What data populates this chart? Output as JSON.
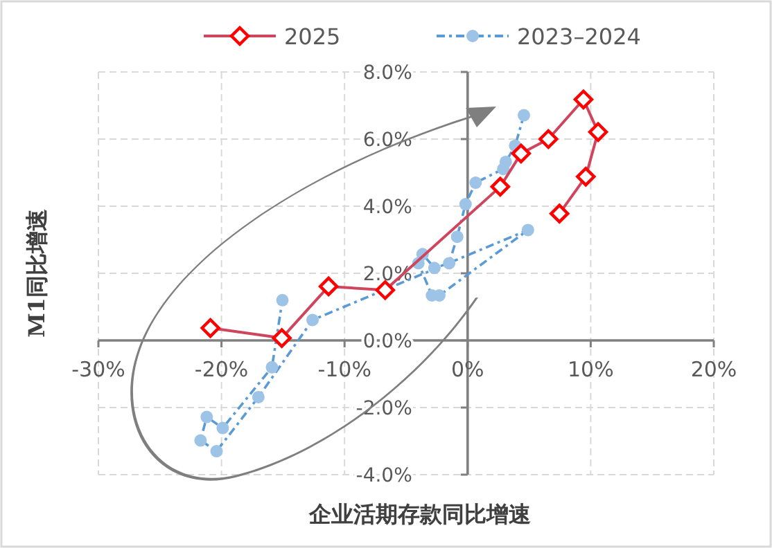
{
  "chart_data": {
    "type": "line",
    "xlabel": "企业活期存款同比增速",
    "ylabel": "M1同比增速",
    "xlim": [
      -30,
      20
    ],
    "ylim": [
      -4,
      8
    ],
    "xticks": [
      {
        "value": -30,
        "label": "-30%"
      },
      {
        "value": -20,
        "label": "-20%"
      },
      {
        "value": -10,
        "label": "-10%"
      },
      {
        "value": 0,
        "label": "0%"
      },
      {
        "value": 10,
        "label": "10%"
      },
      {
        "value": 20,
        "label": "20%"
      }
    ],
    "yticks": [
      {
        "value": -4,
        "label": "-4.0%"
      },
      {
        "value": -2,
        "label": "-2.0%"
      },
      {
        "value": 0,
        "label": "0.0%"
      },
      {
        "value": 2,
        "label": "2.0%"
      },
      {
        "value": 4,
        "label": "4.0%"
      },
      {
        "value": 6,
        "label": "6.0%"
      },
      {
        "value": 8,
        "label": "8.0%"
      }
    ],
    "grid": true,
    "legend": "top",
    "series": [
      {
        "name": "2025",
        "color": "#d0455e",
        "marker": "diamond",
        "line_style": "solid",
        "x": [
          -20.9,
          -15.1,
          -11.3,
          -6.7,
          2.65,
          4.34,
          6.56,
          9.41,
          10.6,
          9.6,
          7.46
        ],
        "values": [
          0.37,
          0.07,
          1.61,
          1.5,
          4.58,
          5.57,
          6.0,
          7.18,
          6.21,
          4.88,
          3.78
        ]
      },
      {
        "name": "2023–2024",
        "color": "#5b9bd5",
        "marker": "circle",
        "line_style": "dashed",
        "x": [
          4.57,
          3.86,
          3.1,
          2.9,
          0.65,
          -0.17,
          -0.85,
          -1.5,
          -2.7,
          -3.66,
          -4.0,
          -2.9,
          -2.3,
          4.9,
          -12.6,
          -17.0,
          -20.4,
          -21.7,
          -21.2,
          -19.9,
          -15.9,
          -15.05
        ],
        "values": [
          6.71,
          5.8,
          5.32,
          5.11,
          4.7,
          4.06,
          3.09,
          2.3,
          2.16,
          2.57,
          2.3,
          1.34,
          1.34,
          3.29,
          0.61,
          -1.69,
          -3.3,
          -2.98,
          -2.28,
          -2.61,
          -0.8,
          1.2
        ]
      }
    ]
  }
}
